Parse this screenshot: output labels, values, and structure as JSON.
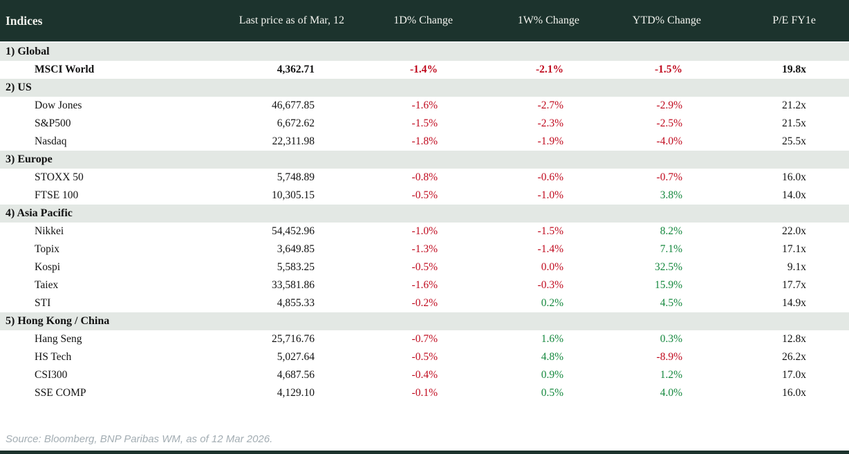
{
  "chart_data": {
    "type": "table",
    "title": "Indices",
    "columns": [
      "Indices",
      "Last price as of Mar, 12",
      "1D% Change",
      "1W% Change",
      "YTD% Change",
      "P/E FY1e"
    ],
    "sections": [
      {
        "label": "1) Global",
        "rows": [
          {
            "name": "MSCI World",
            "price": "4,362.71",
            "d1": "-1.4%",
            "d1_dir": "down",
            "w1": "-2.1%",
            "w1_dir": "down",
            "ytd": "-1.5%",
            "ytd_dir": "down",
            "pe": "19.8x",
            "bold": true
          }
        ]
      },
      {
        "label": "2) US",
        "rows": [
          {
            "name": "Dow Jones",
            "price": "46,677.85",
            "d1": "-1.6%",
            "d1_dir": "down",
            "w1": "-2.7%",
            "w1_dir": "down",
            "ytd": "-2.9%",
            "ytd_dir": "down",
            "pe": "21.2x",
            "bold": false
          },
          {
            "name": "S&P500",
            "price": "6,672.62",
            "d1": "-1.5%",
            "d1_dir": "down",
            "w1": "-2.3%",
            "w1_dir": "down",
            "ytd": "-2.5%",
            "ytd_dir": "down",
            "pe": "21.5x",
            "bold": false
          },
          {
            "name": "Nasdaq",
            "price": "22,311.98",
            "d1": "-1.8%",
            "d1_dir": "down",
            "w1": "-1.9%",
            "w1_dir": "down",
            "ytd": "-4.0%",
            "ytd_dir": "down",
            "pe": "25.5x",
            "bold": false
          }
        ]
      },
      {
        "label": "3) Europe",
        "rows": [
          {
            "name": "STOXX 50",
            "price": "5,748.89",
            "d1": "-0.8%",
            "d1_dir": "down",
            "w1": "-0.6%",
            "w1_dir": "down",
            "ytd": "-0.7%",
            "ytd_dir": "down",
            "pe": "16.0x",
            "bold": false
          },
          {
            "name": "FTSE 100",
            "price": "10,305.15",
            "d1": "-0.5%",
            "d1_dir": "down",
            "w1": "-1.0%",
            "w1_dir": "down",
            "ytd": "3.8%",
            "ytd_dir": "up",
            "pe": "14.0x",
            "bold": false
          }
        ]
      },
      {
        "label": "4) Asia Pacific",
        "rows": [
          {
            "name": "Nikkei",
            "price": "54,452.96",
            "d1": "-1.0%",
            "d1_dir": "down",
            "w1": "-1.5%",
            "w1_dir": "down",
            "ytd": "8.2%",
            "ytd_dir": "up",
            "pe": "22.0x",
            "bold": false
          },
          {
            "name": "Topix",
            "price": "3,649.85",
            "d1": "-1.3%",
            "d1_dir": "down",
            "w1": "-1.4%",
            "w1_dir": "down",
            "ytd": "7.1%",
            "ytd_dir": "up",
            "pe": "17.1x",
            "bold": false
          },
          {
            "name": "Kospi",
            "price": "5,583.25",
            "d1": "-0.5%",
            "d1_dir": "down",
            "w1": "0.0%",
            "w1_dir": "down",
            "ytd": "32.5%",
            "ytd_dir": "up",
            "pe": "9.1x",
            "bold": false
          },
          {
            "name": "Taiex",
            "price": "33,581.86",
            "d1": "-1.6%",
            "d1_dir": "down",
            "w1": "-0.3%",
            "w1_dir": "down",
            "ytd": "15.9%",
            "ytd_dir": "up",
            "pe": "17.7x",
            "bold": false
          },
          {
            "name": "STI",
            "price": "4,855.33",
            "d1": "-0.2%",
            "d1_dir": "down",
            "w1": "0.2%",
            "w1_dir": "up",
            "ytd": "4.5%",
            "ytd_dir": "up",
            "pe": "14.9x",
            "bold": false
          }
        ]
      },
      {
        "label": "5) Hong Kong / China",
        "rows": [
          {
            "name": "Hang Seng",
            "price": "25,716.76",
            "d1": "-0.7%",
            "d1_dir": "down",
            "w1": "1.6%",
            "w1_dir": "up",
            "ytd": "0.3%",
            "ytd_dir": "up",
            "pe": "12.8x",
            "bold": false
          },
          {
            "name": "HS Tech",
            "price": "5,027.64",
            "d1": "-0.5%",
            "d1_dir": "down",
            "w1": "4.8%",
            "w1_dir": "up",
            "ytd": "-8.9%",
            "ytd_dir": "down",
            "pe": "26.2x",
            "bold": false
          },
          {
            "name": "CSI300",
            "price": "4,687.56",
            "d1": "-0.4%",
            "d1_dir": "down",
            "w1": "0.9%",
            "w1_dir": "up",
            "ytd": "1.2%",
            "ytd_dir": "up",
            "pe": "17.0x",
            "bold": false
          },
          {
            "name": "SSE COMP",
            "price": "4,129.10",
            "d1": "-0.1%",
            "d1_dir": "down",
            "w1": "0.5%",
            "w1_dir": "up",
            "ytd": "4.0%",
            "ytd_dir": "up",
            "pe": "16.0x",
            "bold": false
          }
        ]
      }
    ]
  },
  "footer": {
    "source": "Source: Bloomberg, BNP Paribas WM, as of 12 Mar 2026."
  },
  "colors": {
    "header_bg": "#1c332d",
    "section_bg": "#e3e8e4",
    "negative": "#c00b1f",
    "positive": "#15883e",
    "header_text": "#f2f3ee",
    "body_text": "#121212",
    "source_text": "#a3adb3"
  }
}
